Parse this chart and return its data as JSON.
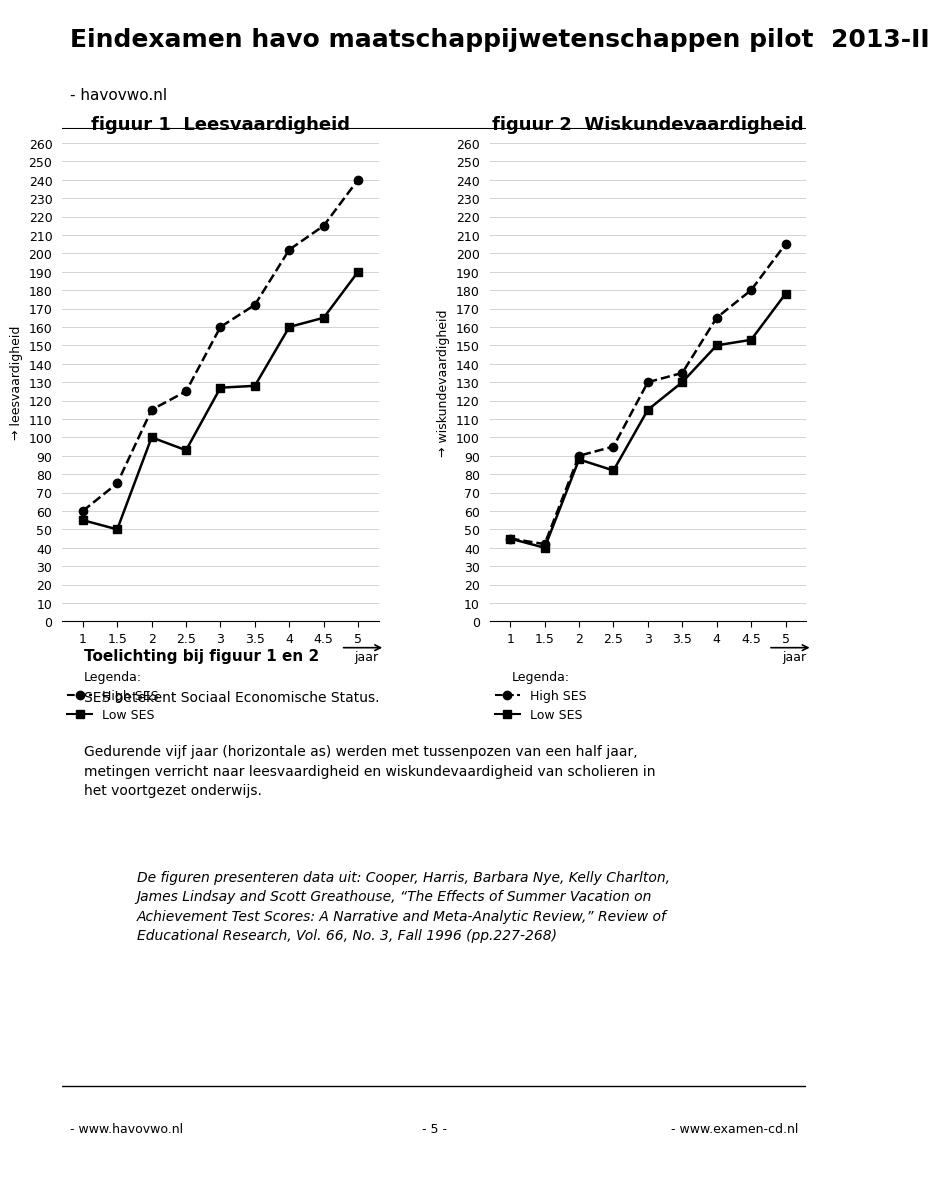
{
  "title": "Eindexamen havo maatschappijwetenschappen pilot  2013-II",
  "subtitle": "- havovwo.nl",
  "fig1_title": "figuur 1  Leesvaardigheid",
  "fig2_title": "figuur 2  Wiskundevaardigheid",
  "fig1_ylabel": "→ leesvaardigheid",
  "fig2_ylabel": "→ wiskundevaardigheid",
  "xlabel": "jaar",
  "x_values": [
    1,
    1.5,
    2,
    2.5,
    3,
    3.5,
    4,
    4.5,
    5
  ],
  "fig1_high_ses": [
    60,
    75,
    115,
    125,
    160,
    172,
    202,
    215,
    240
  ],
  "fig1_low_ses": [
    55,
    50,
    100,
    93,
    127,
    128,
    160,
    165,
    190
  ],
  "fig2_high_ses": [
    45,
    42,
    90,
    95,
    130,
    135,
    165,
    180,
    205
  ],
  "fig2_low_ses": [
    45,
    40,
    88,
    82,
    115,
    130,
    150,
    153,
    178
  ],
  "ylim": [
    0,
    260
  ],
  "yticks": [
    0,
    10,
    20,
    30,
    40,
    50,
    60,
    70,
    80,
    90,
    100,
    110,
    120,
    130,
    140,
    150,
    160,
    170,
    180,
    190,
    200,
    210,
    220,
    230,
    240,
    250,
    260
  ],
  "x_ticks": [
    1,
    1.5,
    2,
    2.5,
    3,
    3.5,
    4,
    4.5,
    5
  ],
  "legend_high": "High SES",
  "legend_low": "Low SES",
  "footer_left": "- www.havovwo.nl",
  "footer_center": "- 5 -",
  "footer_right": "- www.examen-cd.nl",
  "toelichting": "Toelichting bij figuur 1 en 2",
  "ses_betekent": "SES betekent Sociaal Economische Status.",
  "body_text": "Gedurende vijf jaar (horizontale as) werden met tussenpozen van een half jaar,\nmetingen verricht naar leesvaardigheid en wiskundevaardigheid van scholieren in\nhet voortgezet onderwijs.",
  "reference_text": "De figuren presenteren data uit: Cooper, Harris, Barbara Nye, Kelly Charlton,\nJames Lindsay and Scott Greathouse, “The Effects of Summer Vacation on\nAchievement Test Scores: A Narrative and Meta-Analytic Review,” Review of\nEducational Research, Vol. 66, No. 3, Fall 1996 (pp.227-268)"
}
